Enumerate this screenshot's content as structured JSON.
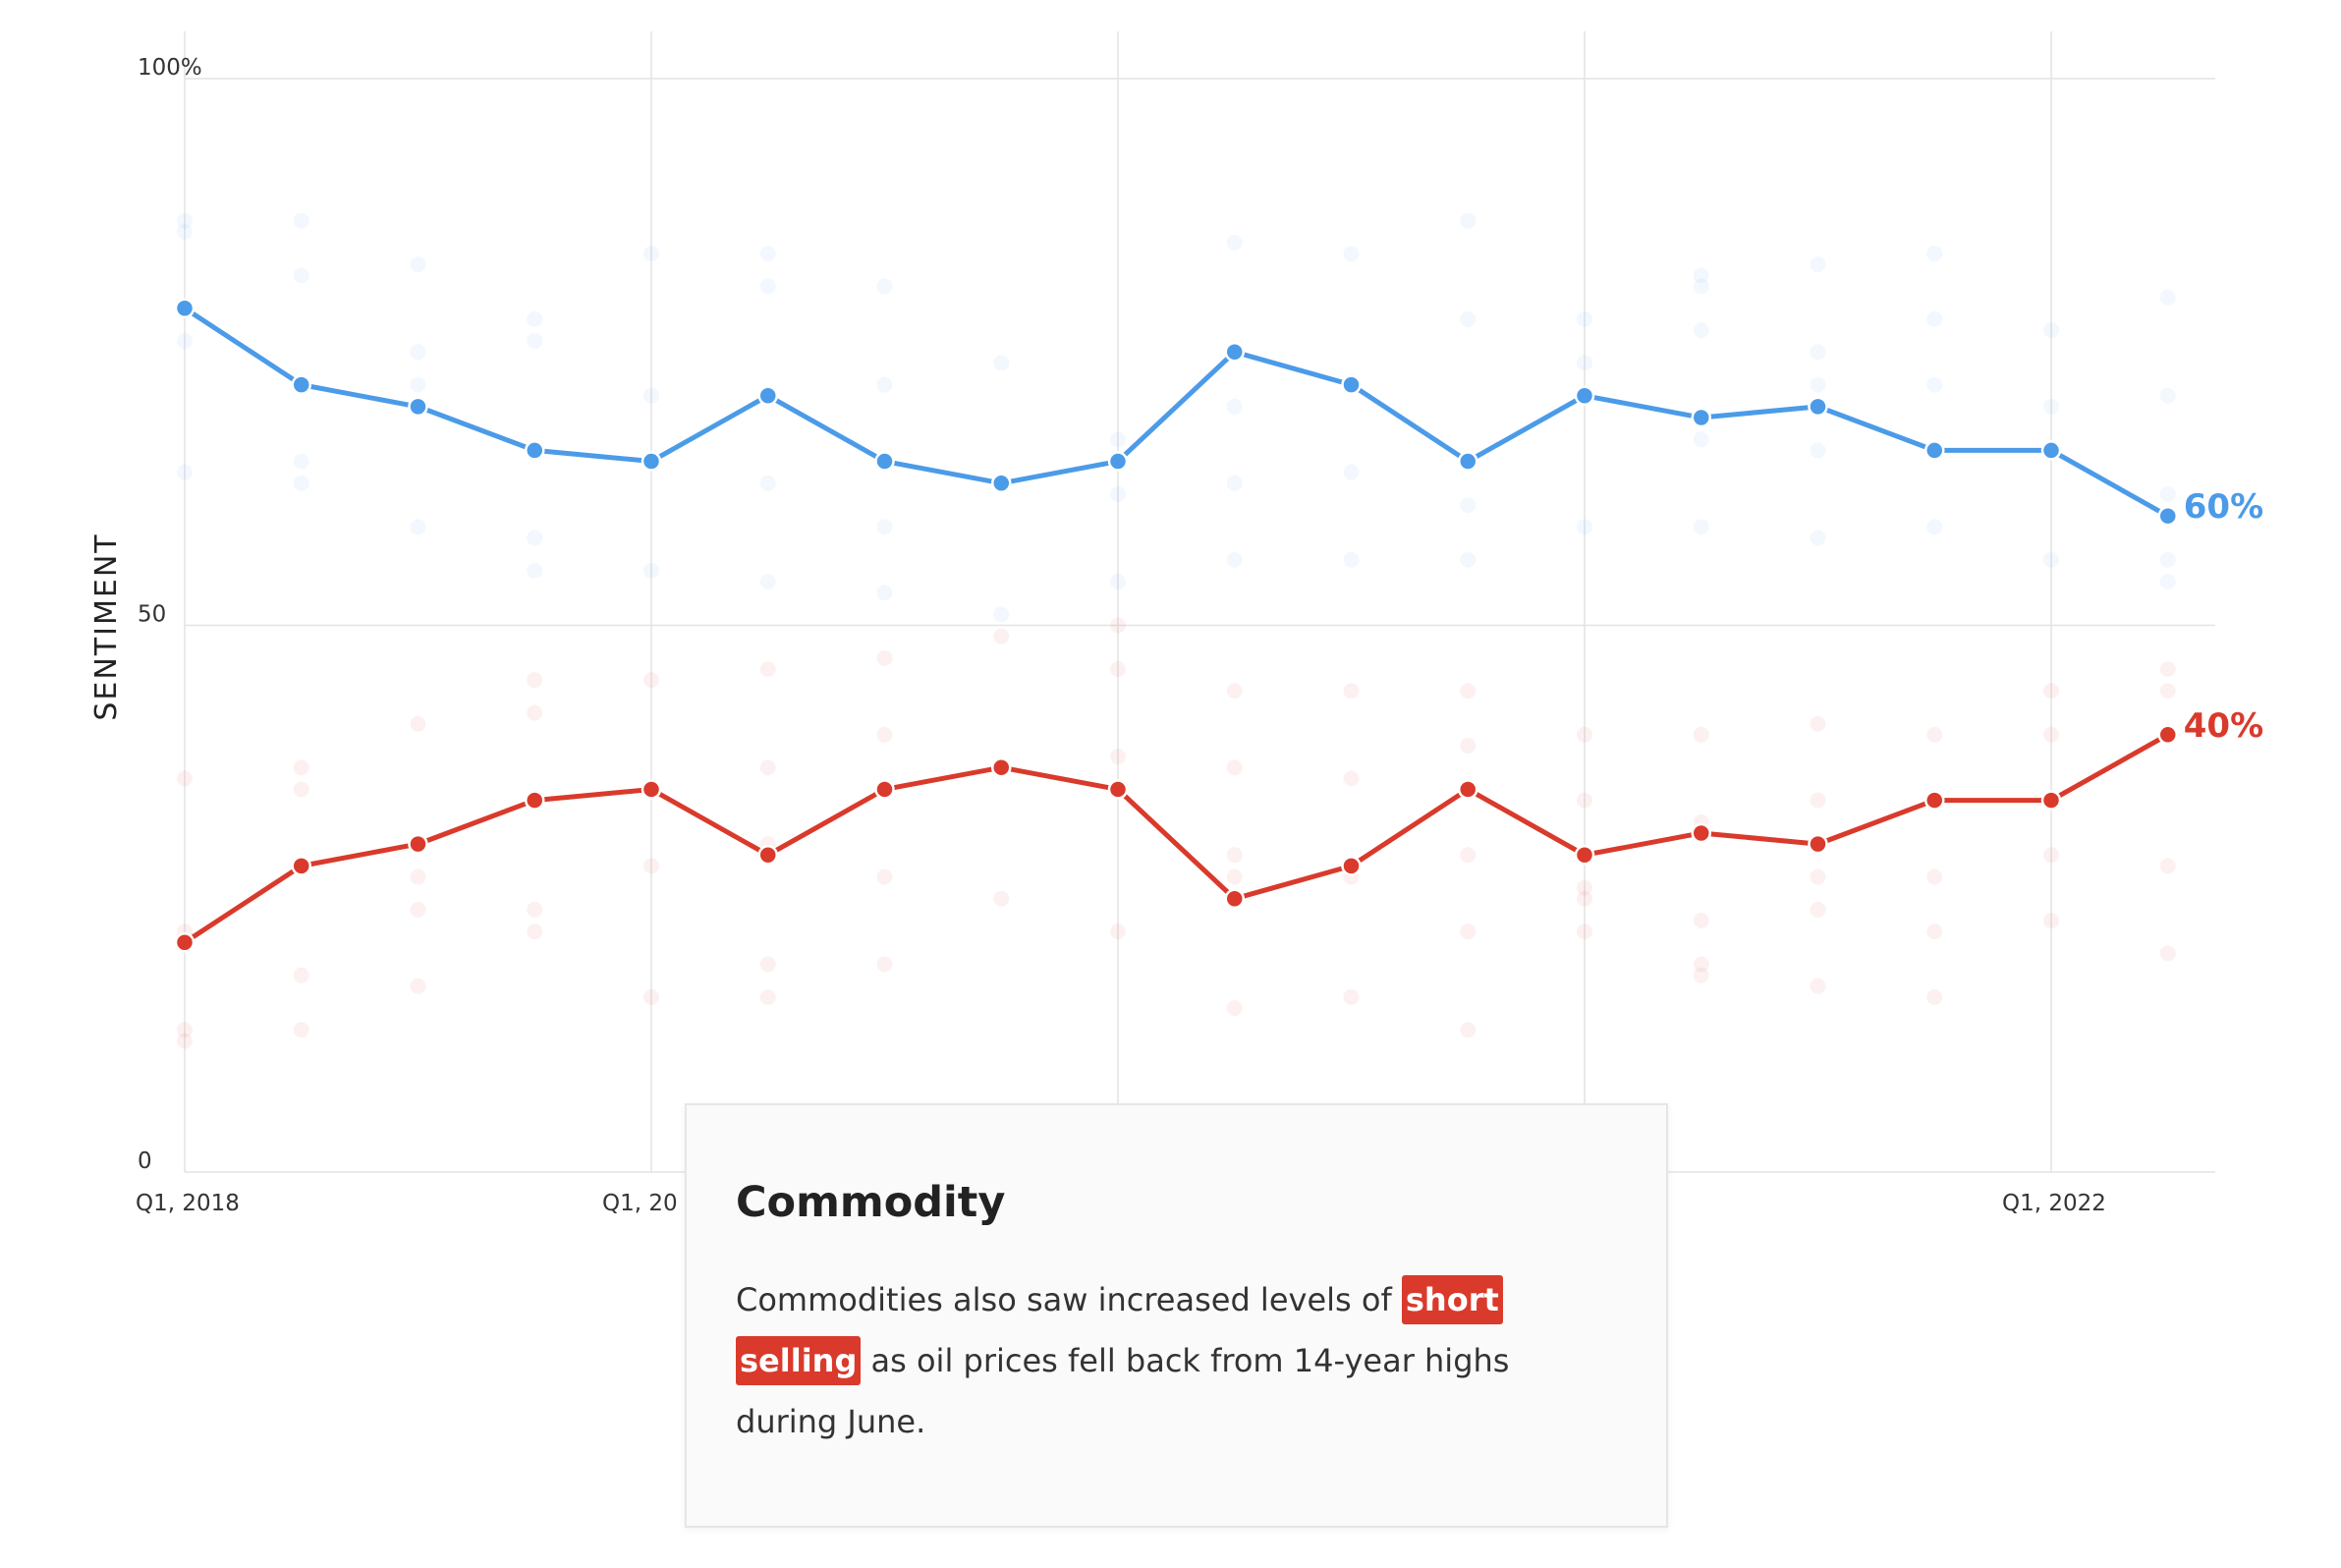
{
  "chart_data": {
    "type": "line",
    "ylabel": "SENTIMENT",
    "ylim": [
      0,
      100
    ],
    "y_ticks": [
      "0",
      "50",
      "100%"
    ],
    "x_tick_labels": [
      "Q1, 2018",
      "Q1, 20",
      "Q1, 2022"
    ],
    "grid": true,
    "series": [
      {
        "color": "#4b9be8",
        "end_label": "60%",
        "values": [
          79,
          72,
          70,
          66,
          65,
          71,
          65,
          63,
          65,
          75,
          72,
          65,
          71,
          69,
          70,
          66,
          66,
          60
        ]
      },
      {
        "color": "#d93a2b",
        "end_label": "40%",
        "values": [
          21,
          28,
          30,
          34,
          35,
          29,
          35,
          37,
          35,
          25,
          28,
          35,
          29,
          31,
          30,
          34,
          34,
          40
        ]
      }
    ],
    "background_points": {
      "upper": [
        [
          0,
          87
        ],
        [
          0,
          86
        ],
        [
          0,
          76
        ],
        [
          0,
          64
        ],
        [
          1,
          87
        ],
        [
          1,
          82
        ],
        [
          1,
          65
        ],
        [
          1,
          63
        ],
        [
          2,
          83
        ],
        [
          2,
          75
        ],
        [
          2,
          72
        ],
        [
          2,
          59
        ],
        [
          3,
          78
        ],
        [
          3,
          76
        ],
        [
          3,
          58
        ],
        [
          3,
          55
        ],
        [
          4,
          84
        ],
        [
          4,
          71
        ],
        [
          4,
          55
        ],
        [
          5,
          84
        ],
        [
          5,
          81
        ],
        [
          5,
          63
        ],
        [
          5,
          54
        ],
        [
          6,
          81
        ],
        [
          6,
          72
        ],
        [
          6,
          59
        ],
        [
          6,
          53
        ],
        [
          7,
          74
        ],
        [
          7,
          51
        ],
        [
          8,
          67
        ],
        [
          8,
          62
        ],
        [
          8,
          54
        ],
        [
          9,
          85
        ],
        [
          9,
          70
        ],
        [
          9,
          63
        ],
        [
          9,
          56
        ],
        [
          10,
          84
        ],
        [
          10,
          64
        ],
        [
          10,
          56
        ],
        [
          11,
          87
        ],
        [
          11,
          78
        ],
        [
          11,
          61
        ],
        [
          11,
          56
        ],
        [
          12,
          78
        ],
        [
          12,
          74
        ],
        [
          12,
          59
        ],
        [
          13,
          82
        ],
        [
          13,
          81
        ],
        [
          13,
          77
        ],
        [
          13,
          67
        ],
        [
          13,
          59
        ],
        [
          14,
          83
        ],
        [
          14,
          75
        ],
        [
          14,
          72
        ],
        [
          14,
          66
        ],
        [
          14,
          58
        ],
        [
          15,
          84
        ],
        [
          15,
          78
        ],
        [
          15,
          72
        ],
        [
          15,
          59
        ],
        [
          16,
          77
        ],
        [
          16,
          70
        ],
        [
          16,
          56
        ],
        [
          17,
          80
        ],
        [
          17,
          71
        ],
        [
          17,
          62
        ],
        [
          17,
          56
        ],
        [
          17,
          54
        ]
      ],
      "lower": [
        [
          0,
          36
        ],
        [
          0,
          22
        ],
        [
          0,
          13
        ],
        [
          0,
          12
        ],
        [
          1,
          37
        ],
        [
          1,
          35
        ],
        [
          1,
          18
        ],
        [
          1,
          13
        ],
        [
          2,
          41
        ],
        [
          2,
          27
        ],
        [
          2,
          24
        ],
        [
          2,
          17
        ],
        [
          3,
          45
        ],
        [
          3,
          42
        ],
        [
          3,
          24
        ],
        [
          3,
          22
        ],
        [
          4,
          45
        ],
        [
          4,
          28
        ],
        [
          4,
          16
        ],
        [
          5,
          46
        ],
        [
          5,
          37
        ],
        [
          5,
          30
        ],
        [
          5,
          19
        ],
        [
          5,
          16
        ],
        [
          6,
          47
        ],
        [
          6,
          40
        ],
        [
          6,
          27
        ],
        [
          6,
          19
        ],
        [
          7,
          49
        ],
        [
          7,
          25
        ],
        [
          8,
          50
        ],
        [
          8,
          46
        ],
        [
          8,
          38
        ],
        [
          8,
          22
        ],
        [
          9,
          44
        ],
        [
          9,
          37
        ],
        [
          9,
          29
        ],
        [
          9,
          27
        ],
        [
          9,
          15
        ],
        [
          10,
          44
        ],
        [
          10,
          36
        ],
        [
          10,
          27
        ],
        [
          10,
          16
        ],
        [
          11,
          44
        ],
        [
          11,
          39
        ],
        [
          11,
          29
        ],
        [
          11,
          22
        ],
        [
          11,
          13
        ],
        [
          12,
          40
        ],
        [
          12,
          34
        ],
        [
          12,
          26
        ],
        [
          12,
          25
        ],
        [
          12,
          22
        ],
        [
          13,
          40
        ],
        [
          13,
          32
        ],
        [
          13,
          23
        ],
        [
          13,
          19
        ],
        [
          13,
          18
        ],
        [
          14,
          41
        ],
        [
          14,
          34
        ],
        [
          14,
          27
        ],
        [
          14,
          24
        ],
        [
          14,
          17
        ],
        [
          15,
          40
        ],
        [
          15,
          27
        ],
        [
          15,
          22
        ],
        [
          15,
          16
        ],
        [
          16,
          44
        ],
        [
          16,
          40
        ],
        [
          16,
          29
        ],
        [
          16,
          23
        ],
        [
          17,
          46
        ],
        [
          17,
          44
        ],
        [
          17,
          28
        ],
        [
          17,
          20
        ]
      ]
    }
  },
  "card": {
    "title": "Commodity",
    "text_before": "Commodities also saw increased levels of ",
    "highlight_1": "short",
    "highlight_2": "selling",
    "text_after": " as oil prices fell back from 14-year highs during June."
  }
}
